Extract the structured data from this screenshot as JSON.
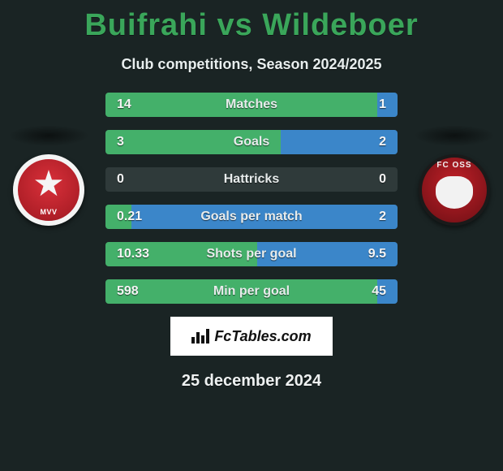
{
  "title": "Buifrahi vs Wildeboer",
  "subtitle": "Club competitions, Season 2024/2025",
  "date": "25 december 2024",
  "footer_brand": "FcTables.com",
  "colors": {
    "background": "#1a2424",
    "accent_title": "#3aa65a",
    "bar_bg": "#2f3a3a",
    "left_fill": "#44b06a",
    "right_fill": "#3b86c9"
  },
  "team_left": {
    "short": "MVV",
    "badge_primary": "#d9303a",
    "badge_border": "#f4f4f4"
  },
  "team_right": {
    "short": "FC OSS",
    "badge_primary": "#c02028",
    "badge_border": "#1a1a1a"
  },
  "rows": [
    {
      "label": "Matches",
      "left": "14",
      "right": "1",
      "left_pct": 93,
      "right_pct": 7
    },
    {
      "label": "Goals",
      "left": "3",
      "right": "2",
      "left_pct": 60,
      "right_pct": 40
    },
    {
      "label": "Hattricks",
      "left": "0",
      "right": "0",
      "left_pct": 0,
      "right_pct": 0
    },
    {
      "label": "Goals per match",
      "left": "0.21",
      "right": "2",
      "left_pct": 9,
      "right_pct": 91
    },
    {
      "label": "Shots per goal",
      "left": "10.33",
      "right": "9.5",
      "left_pct": 52,
      "right_pct": 48
    },
    {
      "label": "Min per goal",
      "left": "598",
      "right": "45",
      "left_pct": 93,
      "right_pct": 7
    }
  ]
}
